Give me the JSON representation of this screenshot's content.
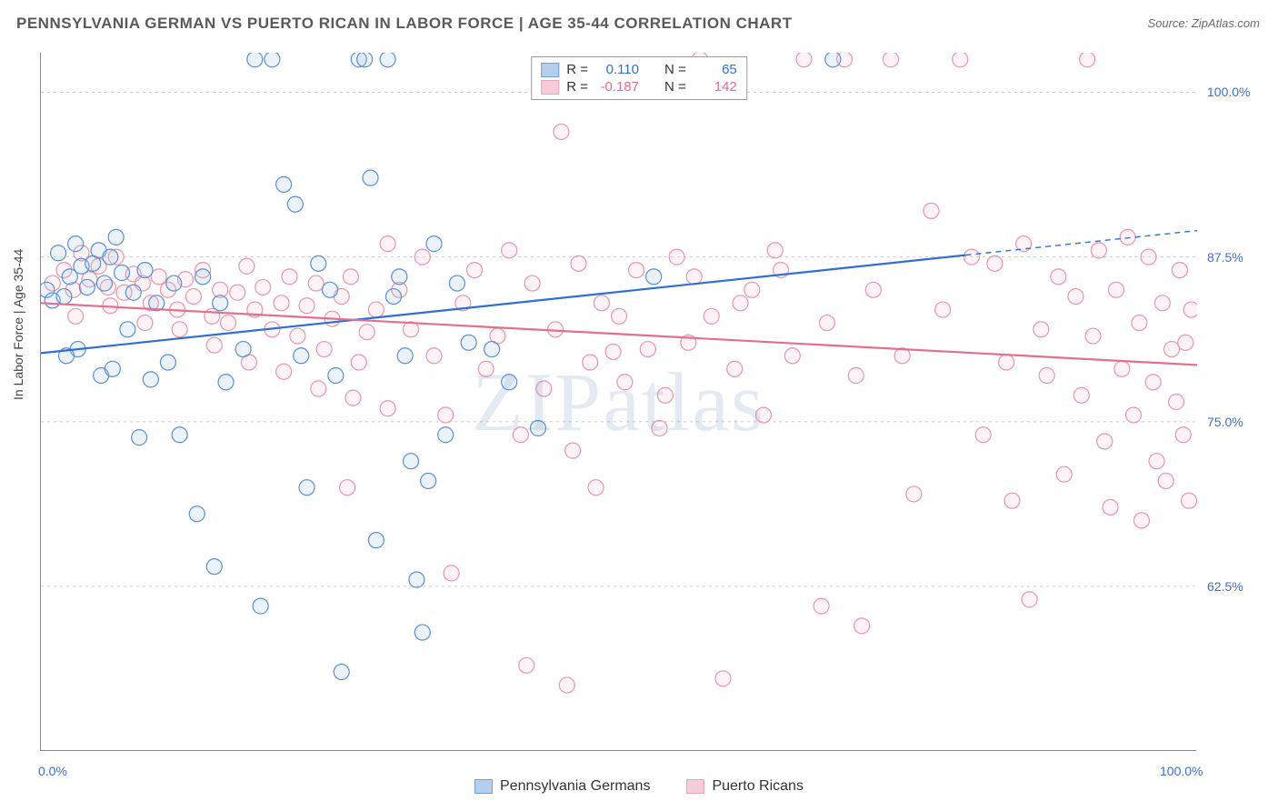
{
  "title": "PENNSYLVANIA GERMAN VS PUERTO RICAN IN LABOR FORCE | AGE 35-44 CORRELATION CHART",
  "source_prefix": "Source: ",
  "source_name": "ZipAtlas.com",
  "y_axis_label": "In Labor Force | Age 35-44",
  "watermark": "ZIPatlas",
  "chart": {
    "type": "scatter-correlation",
    "xlim": [
      0,
      100
    ],
    "ylim": [
      50,
      103
    ],
    "x_tick_positions": [
      0,
      12.5,
      25,
      37.5,
      50,
      62.5,
      75,
      87.5,
      100
    ],
    "x_tick_labels": {
      "0": "0.0%",
      "100": "100.0%"
    },
    "y_grid": [
      62.5,
      75.0,
      87.5,
      100.0
    ],
    "y_tick_labels": [
      "62.5%",
      "75.0%",
      "87.5%",
      "100.0%"
    ],
    "background_color": "#ffffff",
    "grid_color": "#cccccc",
    "grid_dash": "3,4",
    "axis_color": "#878787",
    "marker_radius": 8.5,
    "marker_stroke_width": 1.2,
    "marker_fill_opacity": 0.22,
    "line_width": 2.2,
    "series": [
      {
        "name": "Pennsylvania Germans",
        "color_stroke": "#5a8fd6",
        "color_fill": "#a9c6ea",
        "line_color": "#2f6fd0",
        "R": "0.110",
        "N": "65",
        "trend": {
          "y_at_x0": 80.2,
          "y_at_x100": 89.5,
          "solid_until_x": 80
        },
        "points": [
          [
            0.5,
            85.0
          ],
          [
            1.0,
            84.2
          ],
          [
            1.5,
            87.8
          ],
          [
            2.0,
            84.5
          ],
          [
            2.5,
            86.0
          ],
          [
            3.0,
            88.5
          ],
          [
            3.5,
            86.8
          ],
          [
            4.0,
            85.2
          ],
          [
            4.5,
            87.0
          ],
          [
            5.0,
            88.0
          ],
          [
            5.5,
            85.5
          ],
          [
            6.0,
            87.5
          ],
          [
            6.5,
            89.0
          ],
          [
            7.0,
            86.3
          ],
          [
            7.5,
            82.0
          ],
          [
            8.0,
            84.8
          ],
          [
            3.2,
            80.5
          ],
          [
            2.2,
            80.0
          ],
          [
            5.2,
            78.5
          ],
          [
            6.2,
            79.0
          ],
          [
            8.5,
            73.8
          ],
          [
            9.5,
            78.2
          ],
          [
            11.0,
            79.5
          ],
          [
            12.0,
            74.0
          ],
          [
            13.5,
            68.0
          ],
          [
            15.0,
            64.0
          ],
          [
            16.0,
            78.0
          ],
          [
            17.5,
            80.5
          ],
          [
            15.5,
            84.0
          ],
          [
            14.0,
            86.0
          ],
          [
            18.5,
            102.5
          ],
          [
            19.0,
            61.0
          ],
          [
            20.0,
            102.5
          ],
          [
            21.0,
            93.0
          ],
          [
            22.0,
            91.5
          ],
          [
            22.5,
            80.0
          ],
          [
            23.0,
            70.0
          ],
          [
            24.0,
            87.0
          ],
          [
            25.0,
            85.0
          ],
          [
            25.5,
            78.5
          ],
          [
            26.0,
            56.0
          ],
          [
            27.5,
            102.5
          ],
          [
            28.0,
            102.5
          ],
          [
            28.5,
            93.5
          ],
          [
            29.0,
            66.0
          ],
          [
            30.0,
            102.5
          ],
          [
            30.5,
            84.5
          ],
          [
            31.0,
            86.0
          ],
          [
            31.5,
            80.0
          ],
          [
            32.0,
            72.0
          ],
          [
            32.5,
            63.0
          ],
          [
            33.0,
            59.0
          ],
          [
            33.5,
            70.5
          ],
          [
            34.0,
            88.5
          ],
          [
            35.0,
            74.0
          ],
          [
            36.0,
            85.5
          ],
          [
            37.0,
            81.0
          ],
          [
            43.0,
            74.5
          ],
          [
            39.0,
            80.5
          ],
          [
            40.5,
            78.0
          ],
          [
            68.5,
            102.5
          ],
          [
            53.0,
            86.0
          ],
          [
            9.0,
            86.5
          ],
          [
            10.0,
            84.0
          ],
          [
            11.5,
            85.5
          ]
        ]
      },
      {
        "name": "Puerto Ricans",
        "color_stroke": "#e597ac",
        "color_fill": "#f4c4d1",
        "line_color": "#e36f8f",
        "R": "-0.187",
        "N": "142",
        "trend": {
          "y_at_x0": 84.0,
          "y_at_x100": 79.3,
          "solid_until_x": 100
        },
        "points": [
          [
            1.0,
            85.5
          ],
          [
            2.0,
            86.5
          ],
          [
            2.8,
            85.0
          ],
          [
            3.5,
            87.8
          ],
          [
            4.2,
            85.8
          ],
          [
            5.0,
            86.8
          ],
          [
            5.8,
            85.2
          ],
          [
            6.5,
            87.5
          ],
          [
            7.2,
            84.8
          ],
          [
            8.0,
            86.2
          ],
          [
            8.8,
            85.5
          ],
          [
            9.5,
            84.0
          ],
          [
            10.2,
            86.0
          ],
          [
            11.0,
            85.0
          ],
          [
            11.8,
            83.5
          ],
          [
            12.5,
            85.8
          ],
          [
            13.2,
            84.5
          ],
          [
            14.0,
            86.5
          ],
          [
            14.8,
            83.0
          ],
          [
            15.5,
            85.0
          ],
          [
            16.2,
            82.5
          ],
          [
            17.0,
            84.8
          ],
          [
            17.8,
            86.8
          ],
          [
            18.5,
            83.5
          ],
          [
            19.2,
            85.2
          ],
          [
            20.0,
            82.0
          ],
          [
            20.8,
            84.0
          ],
          [
            21.5,
            86.0
          ],
          [
            22.2,
            81.5
          ],
          [
            23.0,
            83.8
          ],
          [
            23.8,
            85.5
          ],
          [
            24.5,
            80.5
          ],
          [
            25.2,
            82.8
          ],
          [
            26.0,
            84.5
          ],
          [
            26.8,
            86.0
          ],
          [
            27.5,
            79.5
          ],
          [
            28.2,
            81.8
          ],
          [
            29.0,
            83.5
          ],
          [
            30.0,
            88.5
          ],
          [
            31.0,
            85.0
          ],
          [
            32.0,
            82.0
          ],
          [
            33.0,
            87.5
          ],
          [
            34.0,
            80.0
          ],
          [
            35.0,
            75.5
          ],
          [
            35.5,
            63.5
          ],
          [
            36.5,
            84.0
          ],
          [
            37.5,
            86.5
          ],
          [
            38.5,
            79.0
          ],
          [
            39.5,
            81.5
          ],
          [
            40.5,
            88.0
          ],
          [
            41.5,
            74.0
          ],
          [
            42.0,
            56.5
          ],
          [
            42.5,
            85.5
          ],
          [
            43.5,
            77.5
          ],
          [
            44.5,
            82.0
          ],
          [
            45.0,
            97.0
          ],
          [
            45.5,
            55.0
          ],
          [
            46.5,
            87.0
          ],
          [
            47.5,
            79.5
          ],
          [
            48.5,
            84.0
          ],
          [
            46.0,
            72.8
          ],
          [
            50.5,
            78.0
          ],
          [
            51.5,
            86.5
          ],
          [
            52.5,
            80.5
          ],
          [
            53.5,
            74.5
          ],
          [
            55.0,
            87.5
          ],
          [
            56.0,
            81.0
          ],
          [
            57.0,
            102.5
          ],
          [
            58.0,
            83.0
          ],
          [
            59.0,
            55.5
          ],
          [
            60.0,
            79.0
          ],
          [
            61.5,
            85.0
          ],
          [
            62.5,
            75.5
          ],
          [
            63.5,
            88.0
          ],
          [
            65.0,
            80.0
          ],
          [
            66.0,
            102.5
          ],
          [
            67.5,
            61.0
          ],
          [
            68.0,
            82.5
          ],
          [
            69.5,
            102.5
          ],
          [
            70.5,
            78.5
          ],
          [
            71.0,
            59.5
          ],
          [
            72.0,
            85.0
          ],
          [
            73.5,
            102.5
          ],
          [
            74.5,
            80.0
          ],
          [
            75.5,
            69.5
          ],
          [
            77.0,
            91.0
          ],
          [
            78.0,
            83.5
          ],
          [
            79.5,
            102.5
          ],
          [
            80.5,
            87.5
          ],
          [
            81.5,
            74.0
          ],
          [
            82.5,
            87.0
          ],
          [
            83.5,
            79.5
          ],
          [
            84.0,
            69.0
          ],
          [
            85.0,
            88.5
          ],
          [
            85.5,
            61.5
          ],
          [
            86.5,
            82.0
          ],
          [
            87.0,
            78.5
          ],
          [
            88.0,
            86.0
          ],
          [
            88.5,
            71.0
          ],
          [
            89.5,
            84.5
          ],
          [
            90.0,
            77.0
          ],
          [
            90.5,
            102.5
          ],
          [
            91.0,
            81.5
          ],
          [
            91.5,
            88.0
          ],
          [
            92.0,
            73.5
          ],
          [
            92.5,
            68.5
          ],
          [
            93.0,
            85.0
          ],
          [
            93.5,
            79.0
          ],
          [
            94.0,
            89.0
          ],
          [
            94.5,
            75.5
          ],
          [
            95.0,
            82.5
          ],
          [
            95.2,
            67.5
          ],
          [
            95.8,
            87.5
          ],
          [
            96.2,
            78.0
          ],
          [
            96.5,
            72.0
          ],
          [
            97.0,
            84.0
          ],
          [
            97.3,
            70.5
          ],
          [
            97.8,
            80.5
          ],
          [
            98.2,
            76.5
          ],
          [
            98.5,
            86.5
          ],
          [
            98.8,
            74.0
          ],
          [
            99.0,
            81.0
          ],
          [
            99.3,
            69.0
          ],
          [
            99.5,
            83.5
          ],
          [
            3.0,
            83.0
          ],
          [
            6.0,
            83.8
          ],
          [
            9.0,
            82.5
          ],
          [
            12.0,
            82.0
          ],
          [
            15.0,
            80.8
          ],
          [
            18.0,
            79.5
          ],
          [
            21.0,
            78.8
          ],
          [
            24.0,
            77.5
          ],
          [
            27.0,
            76.8
          ],
          [
            30.0,
            76.0
          ],
          [
            48.0,
            70.0
          ],
          [
            50.0,
            83.0
          ],
          [
            54.0,
            77.0
          ],
          [
            56.5,
            86.0
          ],
          [
            60.5,
            84.0
          ],
          [
            64.0,
            86.5
          ],
          [
            26.5,
            70.0
          ],
          [
            49.5,
            80.3
          ]
        ]
      }
    ]
  },
  "legend_top": {
    "r_label": "R =",
    "n_label": "N ="
  },
  "legend_bottom": [
    {
      "label": "Pennsylvania Germans",
      "series": 0
    },
    {
      "label": "Puerto Ricans",
      "series": 1
    }
  ]
}
